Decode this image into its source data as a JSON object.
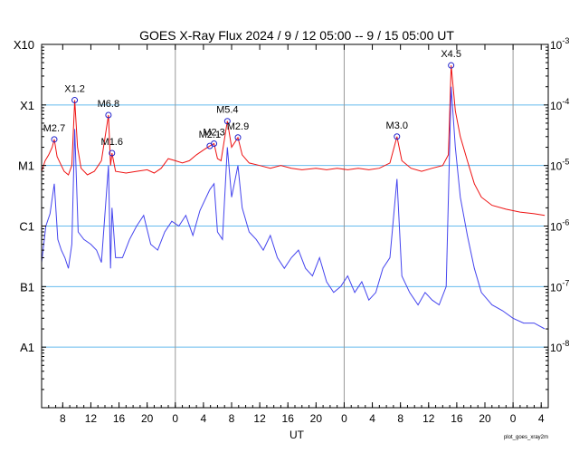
{
  "chart_data": {
    "type": "line",
    "title": "GOES X-Ray Flux   2024  /  9 / 12   05:00 --  9 / 15   05:00   UT",
    "xlabel": "UT",
    "footer": "plot_goes_xray2m",
    "x_tick_labels": [
      "8",
      "12",
      "16",
      "20",
      "0",
      "4",
      "8",
      "12",
      "16",
      "20",
      "0",
      "4",
      "8",
      "12",
      "16",
      "20",
      "0",
      "4"
    ],
    "x_tick_hours": [
      3,
      7,
      11,
      15,
      19,
      23,
      27,
      31,
      35,
      39,
      43,
      47,
      51,
      55,
      59,
      63,
      67,
      71
    ],
    "x_range_hours": [
      0,
      72
    ],
    "y_scale": "log",
    "y_range": [
      1e-09,
      0.001
    ],
    "y_class_labels": [
      {
        "label": "X10",
        "flux": 0.001
      },
      {
        "label": "X1",
        "flux": 0.0001
      },
      {
        "label": "M1",
        "flux": 1e-05
      },
      {
        "label": "C1",
        "flux": 1e-06
      },
      {
        "label": "B1",
        "flux": 1e-07
      },
      {
        "label": "A1",
        "flux": 1e-08
      }
    ],
    "y_right_labels": [
      {
        "mantissa": "10",
        "exp": "-3",
        "flux": 0.001
      },
      {
        "mantissa": "10",
        "exp": "-4",
        "flux": 0.0001
      },
      {
        "mantissa": "10",
        "exp": "-5",
        "flux": 1e-05
      },
      {
        "mantissa": "10",
        "exp": "-6",
        "flux": 1e-06
      },
      {
        "mantissa": "10",
        "exp": "-7",
        "flux": 1e-07
      },
      {
        "mantissa": "10",
        "exp": "-8",
        "flux": 1e-08
      }
    ],
    "grid": true,
    "day_boundaries_hours": [
      19,
      43,
      67
    ],
    "flares": [
      {
        "label": "M2.7",
        "hour": 1.8,
        "flux": 2.7e-05
      },
      {
        "label": "X1.2",
        "hour": 4.7,
        "flux": 0.00012
      },
      {
        "label": "M6.8",
        "hour": 9.5,
        "flux": 6.8e-05
      },
      {
        "label": "M1.6",
        "hour": 10.0,
        "flux": 1.6e-05
      },
      {
        "label": "M2.1",
        "hour": 23.9,
        "flux": 2.1e-05
      },
      {
        "label": "M2.3",
        "hour": 24.5,
        "flux": 2.3e-05
      },
      {
        "label": "M5.4",
        "hour": 26.4,
        "flux": 5.4e-05
      },
      {
        "label": "M2.9",
        "hour": 27.9,
        "flux": 2.9e-05
      },
      {
        "label": "M3.0",
        "hour": 50.5,
        "flux": 3e-05
      },
      {
        "label": "X4.5",
        "hour": 58.2,
        "flux": 0.00045
      }
    ],
    "series": [
      {
        "name": "",
        "color": "#ee1111",
        "points": [
          [
            0,
            8e-06
          ],
          [
            0.5,
            1.2e-05
          ],
          [
            1,
            1.5e-05
          ],
          [
            1.5,
            2e-05
          ],
          [
            1.8,
            2.7e-05
          ],
          [
            2.2,
            1.4e-05
          ],
          [
            2.8,
            1e-05
          ],
          [
            3.2,
            8e-06
          ],
          [
            3.8,
            7e-06
          ],
          [
            4.3,
            1e-05
          ],
          [
            4.7,
            0.00012
          ],
          [
            5.1,
            2e-05
          ],
          [
            5.6,
            9e-06
          ],
          [
            6.5,
            7e-06
          ],
          [
            7.5,
            8e-06
          ],
          [
            8.5,
            1.2e-05
          ],
          [
            9.5,
            6.8e-05
          ],
          [
            9.8,
            1e-05
          ],
          [
            10,
            1.6e-05
          ],
          [
            10.5,
            8e-06
          ],
          [
            12,
            7.5e-06
          ],
          [
            13.5,
            8e-06
          ],
          [
            15,
            8.5e-06
          ],
          [
            16,
            7.5e-06
          ],
          [
            17,
            9e-06
          ],
          [
            18,
            1.3e-05
          ],
          [
            19,
            1.2e-05
          ],
          [
            20,
            1.1e-05
          ],
          [
            21,
            1.2e-05
          ],
          [
            22,
            1.5e-05
          ],
          [
            23,
            1.8e-05
          ],
          [
            23.9,
            2.1e-05
          ],
          [
            24.5,
            2.3e-05
          ],
          [
            25,
            1.3e-05
          ],
          [
            25.5,
            1.2e-05
          ],
          [
            26.4,
            5.4e-05
          ],
          [
            27,
            2e-05
          ],
          [
            27.9,
            2.9e-05
          ],
          [
            28.5,
            1.5e-05
          ],
          [
            29.5,
            1.1e-05
          ],
          [
            31,
            1e-05
          ],
          [
            32.5,
            9e-06
          ],
          [
            34,
            1e-05
          ],
          [
            35.5,
            9e-06
          ],
          [
            37,
            8.5e-06
          ],
          [
            39,
            9e-06
          ],
          [
            40.5,
            8.5e-06
          ],
          [
            42,
            9e-06
          ],
          [
            43.5,
            8.5e-06
          ],
          [
            45,
            9e-06
          ],
          [
            46.5,
            8.5e-06
          ],
          [
            48,
            9e-06
          ],
          [
            49.5,
            1.1e-05
          ],
          [
            50.5,
            3e-05
          ],
          [
            51.2,
            1.2e-05
          ],
          [
            52.5,
            9e-06
          ],
          [
            54,
            8e-06
          ],
          [
            55.5,
            9e-06
          ],
          [
            57,
            1e-05
          ],
          [
            57.8,
            1.5e-05
          ],
          [
            58.2,
            0.00045
          ],
          [
            58.8,
            8e-05
          ],
          [
            59.5,
            3e-05
          ],
          [
            60.5,
            1.2e-05
          ],
          [
            61.5,
            5e-06
          ],
          [
            62.5,
            3e-06
          ],
          [
            64,
            2.2e-06
          ],
          [
            66,
            1.9e-06
          ],
          [
            68,
            1.7e-06
          ],
          [
            70,
            1.6e-06
          ],
          [
            71.5,
            1.5e-06
          ]
        ]
      },
      {
        "name": "",
        "color": "#4444ee",
        "points": [
          [
            0,
            2.5e-07
          ],
          [
            0.6,
            1e-06
          ],
          [
            1.2,
            1.6e-06
          ],
          [
            1.8,
            5e-06
          ],
          [
            2.3,
            6e-07
          ],
          [
            2.8,
            4e-07
          ],
          [
            3.3,
            3e-07
          ],
          [
            3.8,
            2e-07
          ],
          [
            4.3,
            5e-07
          ],
          [
            4.7,
            4e-05
          ],
          [
            5.2,
            8e-07
          ],
          [
            6,
            6e-07
          ],
          [
            7,
            5e-07
          ],
          [
            7.8,
            4e-07
          ],
          [
            8.5,
            2.5e-07
          ],
          [
            9.5,
            1e-05
          ],
          [
            9.8,
            2e-07
          ],
          [
            10,
            2e-06
          ],
          [
            10.5,
            3e-07
          ],
          [
            11.5,
            3e-07
          ],
          [
            12.5,
            6e-07
          ],
          [
            13.5,
            1e-06
          ],
          [
            14.5,
            1.5e-06
          ],
          [
            15.5,
            5e-07
          ],
          [
            16.5,
            4e-07
          ],
          [
            17.5,
            8e-07
          ],
          [
            18.5,
            1.2e-06
          ],
          [
            19.5,
            1e-06
          ],
          [
            20.5,
            1.5e-06
          ],
          [
            21.5,
            7e-07
          ],
          [
            22.5,
            1.8e-06
          ],
          [
            23.9,
            4e-06
          ],
          [
            24.5,
            5e-06
          ],
          [
            25,
            8e-07
          ],
          [
            25.7,
            6e-07
          ],
          [
            26.4,
            2e-05
          ],
          [
            27,
            3e-06
          ],
          [
            27.9,
            1e-05
          ],
          [
            28.5,
            2e-06
          ],
          [
            29.5,
            8e-07
          ],
          [
            30.5,
            6e-07
          ],
          [
            31.5,
            4e-07
          ],
          [
            32.5,
            7e-07
          ],
          [
            33.5,
            3e-07
          ],
          [
            34.5,
            2e-07
          ],
          [
            35.5,
            3e-07
          ],
          [
            36.5,
            4e-07
          ],
          [
            37.5,
            2e-07
          ],
          [
            38.5,
            1.5e-07
          ],
          [
            39.5,
            3e-07
          ],
          [
            40.5,
            1.2e-07
          ],
          [
            41.5,
            8e-08
          ],
          [
            42.5,
            1e-07
          ],
          [
            43.5,
            1.5e-07
          ],
          [
            44.5,
            8e-08
          ],
          [
            45.5,
            1.2e-07
          ],
          [
            46.5,
            6e-08
          ],
          [
            47.5,
            8e-08
          ],
          [
            48.5,
            2e-07
          ],
          [
            49.5,
            3e-07
          ],
          [
            50.5,
            6e-06
          ],
          [
            51.2,
            1.5e-07
          ],
          [
            52.3,
            8e-08
          ],
          [
            53.5,
            5e-08
          ],
          [
            54.5,
            8e-08
          ],
          [
            55.5,
            6e-08
          ],
          [
            56.5,
            5e-08
          ],
          [
            57.5,
            1e-07
          ],
          [
            58.2,
            0.0002
          ],
          [
            58.8,
            2e-05
          ],
          [
            59.5,
            3e-06
          ],
          [
            60.5,
            7e-07
          ],
          [
            61.5,
            2e-07
          ],
          [
            62.5,
            8e-08
          ],
          [
            64,
            5e-08
          ],
          [
            65.5,
            4e-08
          ],
          [
            67,
            3e-08
          ],
          [
            68.5,
            2.5e-08
          ],
          [
            70,
            2.5e-08
          ],
          [
            71.5,
            2e-08
          ]
        ]
      }
    ]
  }
}
